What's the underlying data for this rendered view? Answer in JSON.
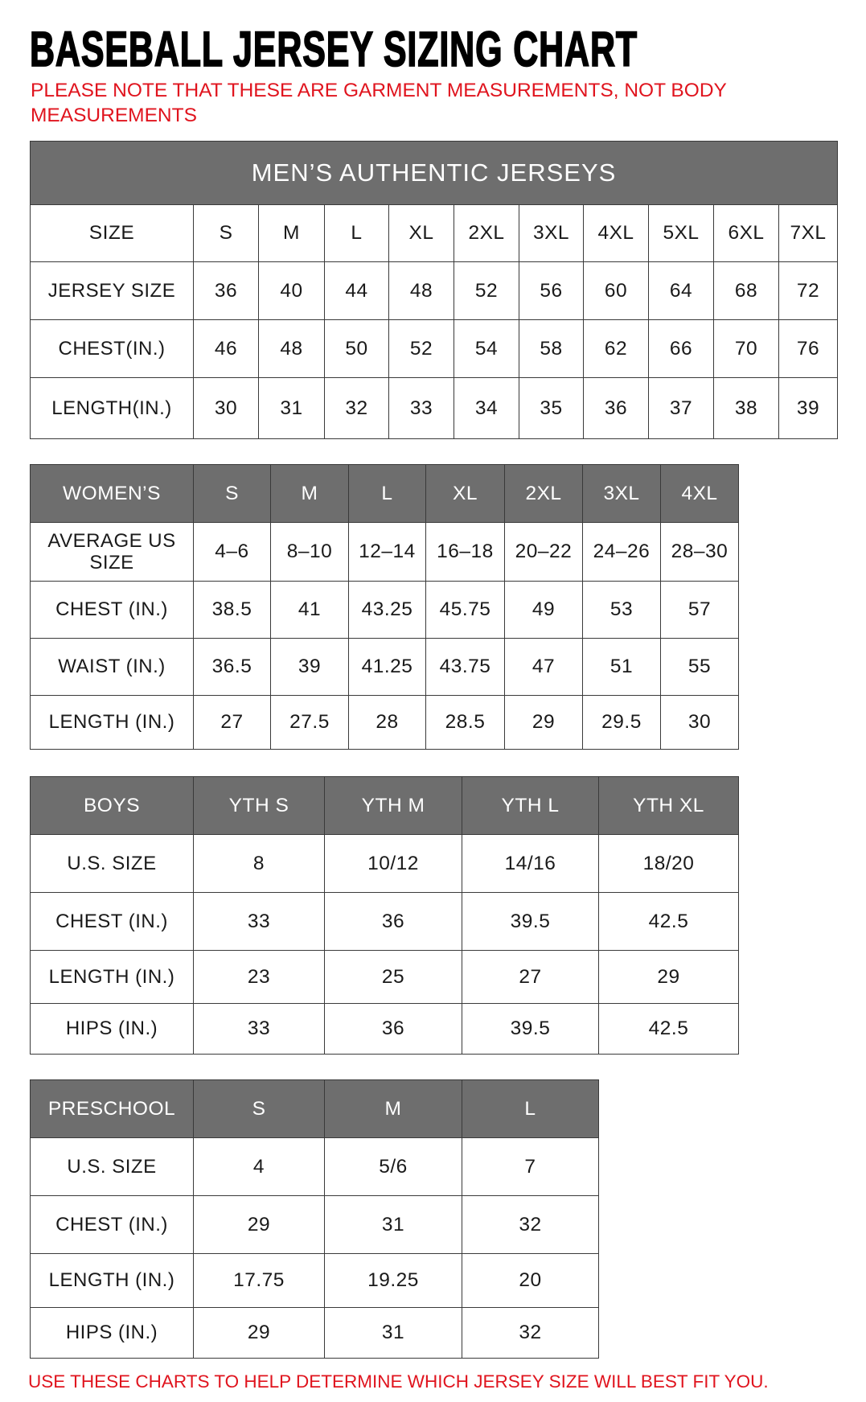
{
  "title": "BASEBALL JERSEY SIZING CHART",
  "note": "PLEASE NOTE THAT THESE ARE GARMENT MEASUREMENTS, NOT BODY MEASUREMENTS",
  "footer": "USE THESE CHARTS TO HELP DETERMINE WHICH JERSEY SIZE WILL BEST FIT YOU.",
  "colors": {
    "header_gray": "#6e6e6e",
    "note_red": "#e0141e"
  },
  "tables": [
    {
      "banner": "MEN’S AUTHENTIC JERSEYS",
      "header": [
        "SIZE",
        "S",
        "M",
        "L",
        "XL",
        "2XL",
        "3XL",
        "4XL",
        "5XL",
        "6XL",
        "7XL"
      ],
      "header_style": "plain",
      "rows": [
        [
          "JERSEY SIZE",
          "36",
          "40",
          "44",
          "48",
          "52",
          "56",
          "60",
          "64",
          "68",
          "72"
        ],
        [
          "CHEST(IN.)",
          "46",
          "48",
          "50",
          "52",
          "54",
          "58",
          "62",
          "66",
          "70",
          "76"
        ],
        [
          "LENGTH(IN.)",
          "30",
          "31",
          "32",
          "33",
          "34",
          "35",
          "36",
          "37",
          "38",
          "39"
        ]
      ]
    },
    {
      "header": [
        "WOMEN’S",
        "S",
        "M",
        "L",
        "XL",
        "2XL",
        "3XL",
        "4XL"
      ],
      "header_style": "gray",
      "rows": [
        [
          "AVERAGE US SIZE",
          "4–6",
          "8–10",
          "12–14",
          "16–18",
          "20–22",
          "24–26",
          "28–30"
        ],
        [
          "CHEST (IN.)",
          "38.5",
          "41",
          "43.25",
          "45.75",
          "49",
          "53",
          "57"
        ],
        [
          "WAIST (IN.)",
          "36.5",
          "39",
          "41.25",
          "43.75",
          "47",
          "51",
          "55"
        ],
        [
          "LENGTH (IN.)",
          "27",
          "27.5",
          "28",
          "28.5",
          "29",
          "29.5",
          "30"
        ]
      ]
    },
    {
      "header": [
        "BOYS",
        "YTH S",
        "YTH M",
        "YTH L",
        "YTH XL"
      ],
      "header_style": "gray",
      "rows": [
        [
          "U.S. SIZE",
          "8",
          "10/12",
          "14/16",
          "18/20"
        ],
        [
          "CHEST (IN.)",
          "33",
          "36",
          "39.5",
          "42.5"
        ],
        [
          "LENGTH (IN.)",
          "23",
          "25",
          "27",
          "29"
        ],
        [
          "HIPS (IN.)",
          "33",
          "36",
          "39.5",
          "42.5"
        ]
      ]
    },
    {
      "header": [
        "PRESCHOOL",
        "S",
        "M",
        "L"
      ],
      "header_style": "gray",
      "rows": [
        [
          "U.S. SIZE",
          "4",
          "5/6",
          "7"
        ],
        [
          "CHEST (IN.)",
          "29",
          "31",
          "32"
        ],
        [
          "LENGTH (IN.)",
          "17.75",
          "19.25",
          "20"
        ],
        [
          "HIPS (IN.)",
          "29",
          "31",
          "32"
        ]
      ]
    }
  ]
}
